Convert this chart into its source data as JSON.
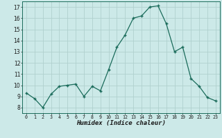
{
  "x": [
    0,
    1,
    2,
    3,
    4,
    5,
    6,
    7,
    8,
    9,
    10,
    11,
    12,
    13,
    14,
    15,
    16,
    17,
    18,
    19,
    20,
    21,
    22,
    23
  ],
  "y": [
    9.3,
    8.8,
    8.0,
    9.2,
    9.9,
    10.0,
    10.1,
    9.0,
    9.9,
    9.5,
    11.4,
    13.4,
    14.5,
    16.0,
    16.2,
    17.0,
    17.1,
    15.5,
    13.0,
    13.4,
    10.6,
    9.9,
    8.9,
    8.6
  ],
  "xlabel": "Humidex (Indice chaleur)",
  "ylim": [
    7.5,
    17.5
  ],
  "xlim": [
    -0.5,
    23.5
  ],
  "yticks": [
    8,
    9,
    10,
    11,
    12,
    13,
    14,
    15,
    16,
    17
  ],
  "xticks": [
    0,
    1,
    2,
    3,
    4,
    5,
    6,
    7,
    8,
    9,
    10,
    11,
    12,
    13,
    14,
    15,
    16,
    17,
    18,
    19,
    20,
    21,
    22,
    23
  ],
  "xtick_labels": [
    "0",
    "1",
    "2",
    "3",
    "4",
    "5",
    "6",
    "7",
    "8",
    "9",
    "10",
    "11",
    "12",
    "13",
    "14",
    "15",
    "16",
    "17",
    "18",
    "19",
    "20",
    "21",
    "22",
    "23"
  ],
  "line_color": "#1a6b5a",
  "marker_color": "#1a6b5a",
  "bg_color": "#cce9e8",
  "grid_color": "#b0d0ce",
  "label_color": "#1a1a1a"
}
